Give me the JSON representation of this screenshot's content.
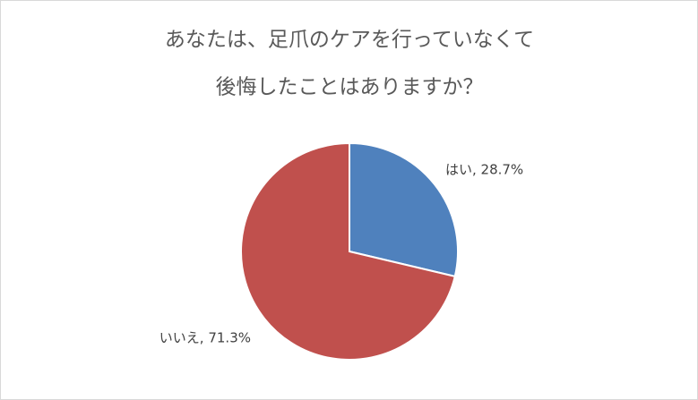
{
  "chart_data": {
    "type": "pie",
    "title": [
      "あなたは、足爪のケアを行っていなくて",
      "後悔したことはありますか？"
    ],
    "values": [
      28.7,
      71.3
    ],
    "value_labels": [
      "はい, 28.7%",
      "いいえ, 71.3%"
    ],
    "colors": [
      "#4f81bd",
      "#c0504d"
    ]
  }
}
